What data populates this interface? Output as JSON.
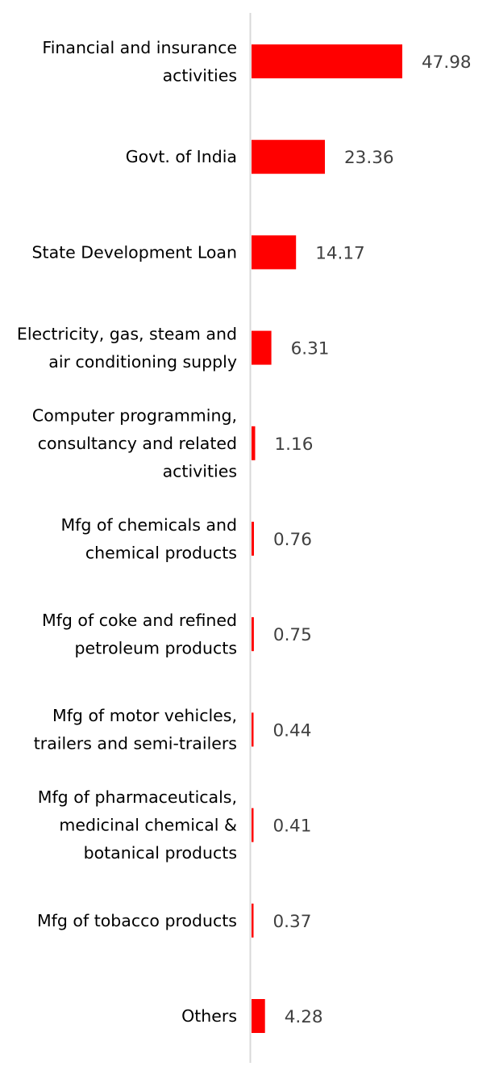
{
  "chart_data": {
    "type": "bar",
    "orientation": "horizontal",
    "title": "",
    "xlabel": "",
    "ylabel": "",
    "grid": false,
    "legend": "none",
    "bar_color": "#ff0000",
    "axis_color": "#d9d9d9",
    "xlim": [
      0,
      47.98
    ],
    "categories": [
      [
        "Financial and insurance",
        "activities"
      ],
      [
        "Govt. of India"
      ],
      [
        "State Development Loan"
      ],
      [
        "Electricity, gas, steam and",
        "air conditioning supply"
      ],
      [
        "Computer programming,",
        "consultancy and related",
        "activities"
      ],
      [
        "Mfg of chemicals and",
        "chemical products"
      ],
      [
        "Mfg of coke and refined",
        "petroleum products"
      ],
      [
        "Mfg of motor vehicles,",
        "trailers and semi-trailers"
      ],
      [
        "Mfg of pharmaceuticals,",
        "medicinal chemical &",
        "botanical products"
      ],
      [
        "Mfg of tobacco products"
      ],
      [
        "Others"
      ]
    ],
    "values": [
      47.98,
      23.36,
      14.17,
      6.31,
      1.16,
      0.76,
      0.75,
      0.44,
      0.41,
      0.37,
      4.28
    ],
    "value_labels": [
      "47.98",
      "23.36",
      "14.17",
      "6.31",
      "1.16",
      "0.76",
      "0.75",
      "0.44",
      "0.41",
      "0.37",
      "4.28"
    ]
  }
}
